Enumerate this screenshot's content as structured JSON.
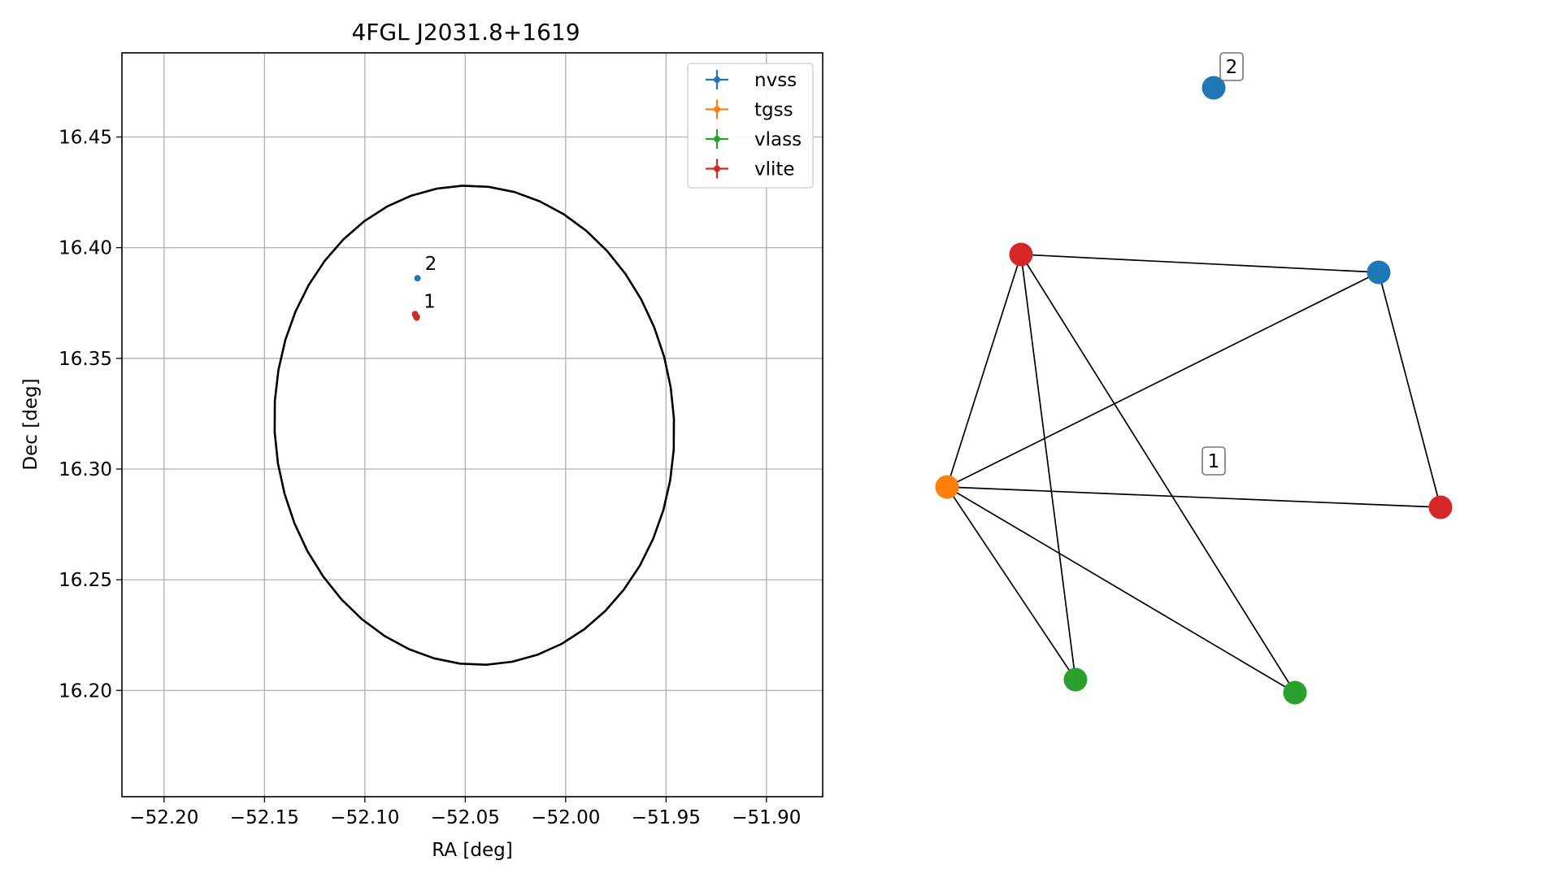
{
  "colors": {
    "nvss": "#1f77b4",
    "tgss": "#ff7f0e",
    "vlass": "#2ca02c",
    "vlite": "#d62728",
    "grid": "#b0b0b0",
    "ellipse": "#000000"
  },
  "chart_data": [
    {
      "type": "scatter",
      "title": "4FGL J2031.8+1619",
      "xlabel": "RA [deg]",
      "ylabel": "Dec [deg]",
      "xlim": [
        -52.221,
        -51.872
      ],
      "ylim": [
        16.152,
        16.488
      ],
      "xticks": [
        -52.2,
        -52.15,
        -52.1,
        -52.05,
        -52.0,
        -51.95,
        -51.9
      ],
      "xtick_labels": [
        "−52.20",
        "−52.15",
        "−52.10",
        "−52.05",
        "−52.00",
        "−51.95",
        "−51.90"
      ],
      "yticks": [
        16.2,
        16.25,
        16.3,
        16.35,
        16.4,
        16.45
      ],
      "ytick_labels": [
        "16.20",
        "16.25",
        "16.30",
        "16.35",
        "16.40",
        "16.45"
      ],
      "grid": true,
      "legend_position": "top-right",
      "legend": [
        "nvss",
        "tgss",
        "vlass",
        "vlite"
      ],
      "ellipse": {
        "center_ra": -52.0455,
        "center_dec": 16.3198,
        "semi_axis_ra_deg": 0.0993,
        "semi_axis_dec_deg": 0.1085,
        "rotation_deg": 10
      },
      "series": [
        {
          "name": "nvss",
          "points": [
            {
              "ra": -52.0738,
              "dec": 16.3862
            }
          ]
        },
        {
          "name": "tgss",
          "points": [
            {
              "ra": -52.0748,
              "dec": 16.3695
            }
          ]
        },
        {
          "name": "vlass",
          "points": [
            {
              "ra": -52.0741,
              "dec": 16.3688
            },
            {
              "ra": -52.0746,
              "dec": 16.3692
            }
          ]
        },
        {
          "name": "vlite",
          "points": [
            {
              "ra": -52.075,
              "dec": 16.37
            },
            {
              "ra": -52.0742,
              "dec": 16.3684
            }
          ]
        }
      ],
      "annotations": [
        {
          "text": "2",
          "ra": -52.0738,
          "dec": 16.3862
        },
        {
          "text": "1",
          "ra": -52.0744,
          "dec": 16.3692
        }
      ]
    },
    {
      "type": "diagram",
      "labels": [
        {
          "text": "1"
        },
        {
          "text": "2"
        }
      ],
      "nodes": [
        {
          "id": "nvss_top",
          "survey": "nvss"
        },
        {
          "id": "vlite_left",
          "survey": "vlite"
        },
        {
          "id": "nvss_right",
          "survey": "nvss"
        },
        {
          "id": "tgss",
          "survey": "tgss"
        },
        {
          "id": "vlite_right",
          "survey": "vlite"
        },
        {
          "id": "vlass_left",
          "survey": "vlass"
        },
        {
          "id": "vlass_right",
          "survey": "vlass"
        }
      ],
      "edges": [
        [
          "vlite_left",
          "nvss_right"
        ],
        [
          "vlite_left",
          "tgss"
        ],
        [
          "vlite_left",
          "vlass_left"
        ],
        [
          "vlite_left",
          "vlass_right"
        ],
        [
          "nvss_right",
          "tgss"
        ],
        [
          "nvss_right",
          "vlite_right"
        ],
        [
          "tgss",
          "vlite_right"
        ],
        [
          "tgss",
          "vlass_left"
        ],
        [
          "tgss",
          "vlass_right"
        ]
      ]
    }
  ]
}
